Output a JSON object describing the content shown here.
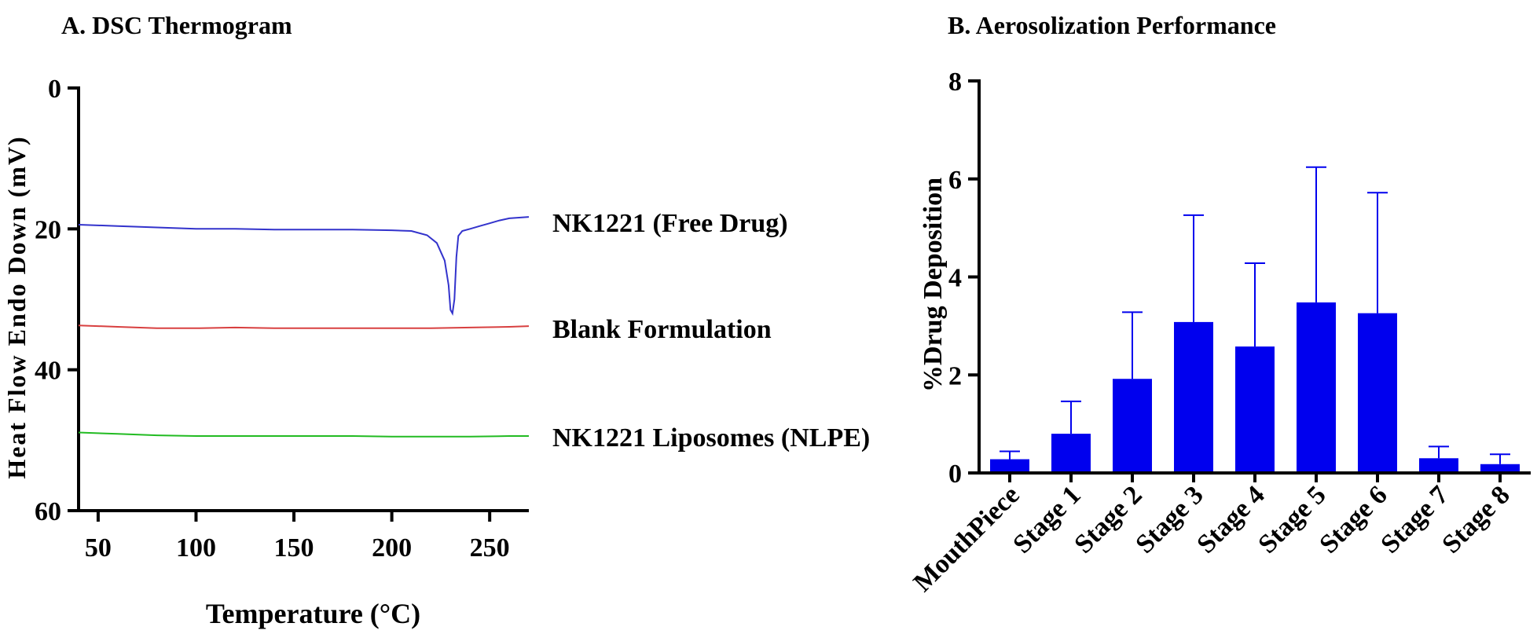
{
  "chart_data": [
    {
      "type": "line",
      "title": "A. DSC Thermogram",
      "xlabel": "Temperature (°C)",
      "ylabel": "Heat Flow Endo Down (mV)",
      "xlim": [
        40,
        270
      ],
      "ylim": [
        60,
        0
      ],
      "y_inverted": true,
      "x_ticks": [
        50,
        100,
        150,
        200,
        250
      ],
      "y_ticks": [
        0,
        20,
        40,
        60
      ],
      "grid": false,
      "legend_placement": "right of curves",
      "series": [
        {
          "name": "NK1221 (Free Drug)",
          "color": "#3333cc",
          "x": [
            40,
            60,
            80,
            100,
            120,
            140,
            160,
            180,
            200,
            210,
            218,
            223,
            227,
            229,
            230,
            231,
            232,
            233,
            234,
            236,
            240,
            245,
            250,
            255,
            260,
            265,
            270
          ],
          "y": [
            19.4,
            19.6,
            19.8,
            20.0,
            20.0,
            20.1,
            20.1,
            20.1,
            20.2,
            20.3,
            20.9,
            22.0,
            24.5,
            28.0,
            31.5,
            32.0,
            30.0,
            24.0,
            21.0,
            20.3,
            20.0,
            19.6,
            19.2,
            18.8,
            18.5,
            18.4,
            18.3
          ]
        },
        {
          "name": "Blank Formulation",
          "color": "#d84040",
          "x": [
            40,
            60,
            80,
            100,
            120,
            140,
            160,
            180,
            200,
            220,
            240,
            260,
            270
          ],
          "y": [
            33.7,
            33.9,
            34.1,
            34.1,
            34.0,
            34.1,
            34.1,
            34.1,
            34.1,
            34.1,
            34.0,
            33.9,
            33.8
          ]
        },
        {
          "name": "NK1221 Liposomes (NLPE)",
          "color": "#22bb22",
          "x": [
            40,
            60,
            80,
            100,
            120,
            140,
            160,
            180,
            200,
            220,
            240,
            260,
            270
          ],
          "y": [
            48.9,
            49.1,
            49.3,
            49.4,
            49.4,
            49.4,
            49.4,
            49.4,
            49.5,
            49.5,
            49.5,
            49.4,
            49.4
          ]
        }
      ]
    },
    {
      "type": "bar",
      "title": "B. Aerosolization Performance",
      "xlabel": "",
      "ylabel": "%Drug Deposition",
      "ylim": [
        0,
        8
      ],
      "y_ticks": [
        0,
        2,
        4,
        6,
        8
      ],
      "grid": false,
      "bar_color": "#0000ee",
      "categories": [
        "MouthPiece",
        "Stage 1",
        "Stage 2",
        "Stage 3",
        "Stage 4",
        "Stage 5",
        "Stage 6",
        "Stage 7",
        "Stage 8"
      ],
      "values": [
        0.28,
        0.8,
        1.92,
        3.08,
        2.58,
        3.48,
        3.26,
        0.3,
        0.18
      ],
      "error_upper": [
        0.44,
        1.46,
        3.28,
        5.26,
        4.28,
        6.24,
        5.72,
        0.54,
        0.38
      ]
    }
  ]
}
